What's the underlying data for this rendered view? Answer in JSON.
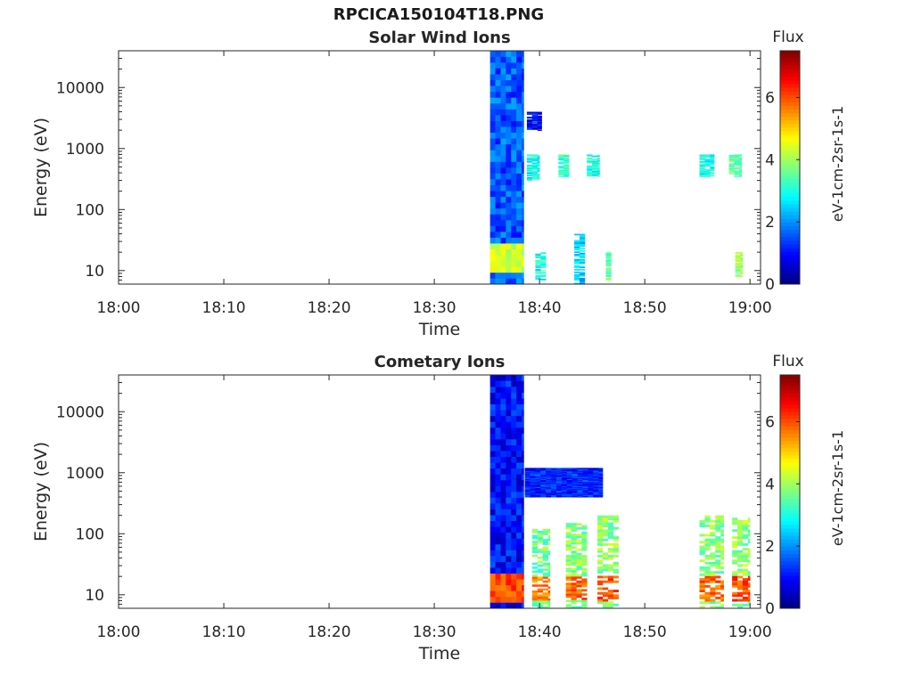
{
  "figure": {
    "title": "RPCICA150104T18.PNG"
  },
  "colors": {
    "colormap": "jet",
    "background": "#ffffff",
    "axis": "#262626"
  },
  "chart_data": [
    {
      "type": "heatmap",
      "title": "Solar Wind Ions",
      "xlabel": "Time",
      "ylabel": "Energy (eV)",
      "x_ticks": [
        "18:00",
        "18:10",
        "18:20",
        "18:30",
        "18:40",
        "18:50",
        "19:00"
      ],
      "x_range_minutes": [
        0,
        61
      ],
      "y_scale": "log",
      "y_ticks": [
        "10",
        "100",
        "1000",
        "10000"
      ],
      "y_range": [
        6,
        40000
      ],
      "colorbar": {
        "title": "Flux",
        "label": "eV-1cm-2sr-1s-1",
        "range": [
          0,
          7.5
        ],
        "ticks": [
          "0",
          "2",
          "4",
          "6"
        ]
      },
      "grid": false,
      "blocks": [
        {
          "t": [
            35.3,
            38.5
          ],
          "e": [
            6,
            40000
          ],
          "flux": 1.6,
          "note_peak": [
            10,
            30,
            4.3
          ]
        },
        {
          "t": [
            38.8,
            40.2
          ],
          "e": [
            2000,
            4000
          ],
          "flux": 1.0
        },
        {
          "t": [
            38.8,
            40.0
          ],
          "e": [
            300,
            800
          ],
          "flux": 2.8
        },
        {
          "t": [
            39.6,
            40.6
          ],
          "e": [
            7,
            20
          ],
          "flux": 3.0
        },
        {
          "t": [
            41.8,
            42.8
          ],
          "e": [
            350,
            800
          ],
          "flux": 3.2
        },
        {
          "t": [
            43.3,
            44.3
          ],
          "e": [
            6,
            40
          ],
          "flux": 2.5
        },
        {
          "t": [
            44.5,
            45.7
          ],
          "e": [
            350,
            800
          ],
          "flux": 3.0
        },
        {
          "t": [
            46.3,
            46.8
          ],
          "e": [
            7,
            20
          ],
          "flux": 3.6
        },
        {
          "t": [
            55.2,
            56.6
          ],
          "e": [
            350,
            800
          ],
          "flux": 2.9
        },
        {
          "t": [
            58.0,
            59.2
          ],
          "e": [
            350,
            800
          ],
          "flux": 3.4
        },
        {
          "t": [
            58.6,
            59.3
          ],
          "e": [
            8,
            20
          ],
          "flux": 4.0
        }
      ]
    },
    {
      "type": "heatmap",
      "title": "Cometary Ions",
      "xlabel": "Time",
      "ylabel": "Energy (eV)",
      "x_ticks": [
        "18:00",
        "18:10",
        "18:20",
        "18:30",
        "18:40",
        "18:50",
        "19:00"
      ],
      "x_range_minutes": [
        0,
        61
      ],
      "y_scale": "log",
      "y_ticks": [
        "10",
        "100",
        "1000",
        "10000"
      ],
      "y_range": [
        6,
        40000
      ],
      "colorbar": {
        "title": "Flux",
        "label": "eV-1cm-2sr-1s-1",
        "range": [
          0,
          7.5
        ],
        "ticks": [
          "0",
          "2",
          "4",
          "6"
        ]
      },
      "grid": false,
      "blocks": [
        {
          "t": [
            35.3,
            38.5
          ],
          "e": [
            6,
            40000
          ],
          "flux": 1.0,
          "note_peak": [
            8,
            25,
            6.0
          ]
        },
        {
          "t": [
            39.3,
            41.0
          ],
          "e": [
            6,
            120
          ],
          "flux": 3.6,
          "note_peak": [
            8,
            20,
            5.6
          ]
        },
        {
          "t": [
            42.5,
            44.5
          ],
          "e": [
            6,
            150
          ],
          "flux": 3.8,
          "note_peak": [
            8,
            20,
            5.8
          ]
        },
        {
          "t": [
            45.5,
            47.5
          ],
          "e": [
            6,
            200
          ],
          "flux": 3.9,
          "note_peak": [
            8,
            20,
            6.0
          ]
        },
        {
          "t": [
            55.2,
            57.5
          ],
          "e": [
            6,
            200
          ],
          "flux": 3.8,
          "note_peak": [
            8,
            20,
            5.8
          ]
        },
        {
          "t": [
            58.3,
            60.0
          ],
          "e": [
            6,
            200
          ],
          "flux": 3.9,
          "note_peak": [
            8,
            20,
            6.0
          ]
        },
        {
          "t": [
            38.6,
            46.0
          ],
          "e": [
            400,
            1200
          ],
          "flux": 1.2
        }
      ]
    }
  ]
}
